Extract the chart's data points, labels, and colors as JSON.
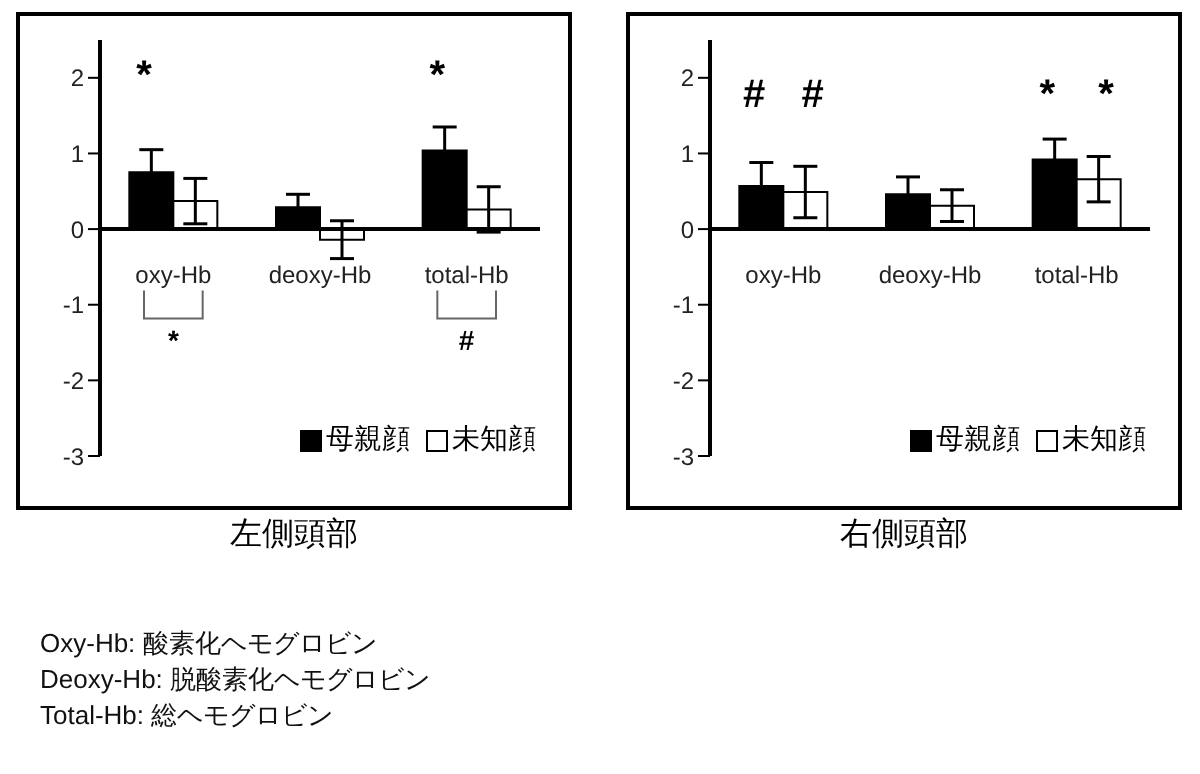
{
  "chart_data": [
    {
      "type": "bar",
      "xlabel": "左側頭部",
      "categories": [
        "oxy-Hb",
        "deoxy-Hb",
        "total-Hb"
      ],
      "series": [
        {
          "name": "母親顔",
          "color": "#000000",
          "values": [
            0.75,
            0.29,
            1.04
          ],
          "errors": [
            0.3,
            0.17,
            0.31
          ]
        },
        {
          "name": "未知顔",
          "color": "#ffffff",
          "values": [
            0.37,
            -0.14,
            0.26
          ],
          "errors": [
            0.3,
            0.25,
            0.3
          ]
        }
      ],
      "ylim": [
        -3,
        2.5
      ],
      "yticks": [
        -3,
        -2,
        -1,
        0,
        1,
        2
      ],
      "legend": "bottom right",
      "annotations": [
        "*",
        "*",
        "*",
        "#",
        "Oxy-Hb: 酸素化ヘモグロビン",
        "Deoxy-Hb: 脱酸素化ヘモグロビン",
        "Total-Hb: 総ヘモグロビン"
      ]
    },
    {
      "type": "bar",
      "xlabel": "右側頭部",
      "categories": [
        "oxy-Hb",
        "deoxy-Hb",
        "total-Hb"
      ],
      "series": [
        {
          "name": "母親顔",
          "color": "#000000",
          "values": [
            0.57,
            0.46,
            0.92
          ],
          "errors": [
            0.31,
            0.23,
            0.27
          ]
        },
        {
          "name": "未知顔",
          "color": "#ffffff",
          "values": [
            0.49,
            0.31,
            0.66
          ],
          "errors": [
            0.34,
            0.21,
            0.3
          ]
        }
      ],
      "ylim": [
        -3,
        2.5
      ],
      "yticks": [
        -3,
        -2,
        -1,
        0,
        1,
        2
      ],
      "legend": "bottom right",
      "annotations": [
        "#",
        "#",
        "*",
        "*"
      ]
    }
  ]
}
